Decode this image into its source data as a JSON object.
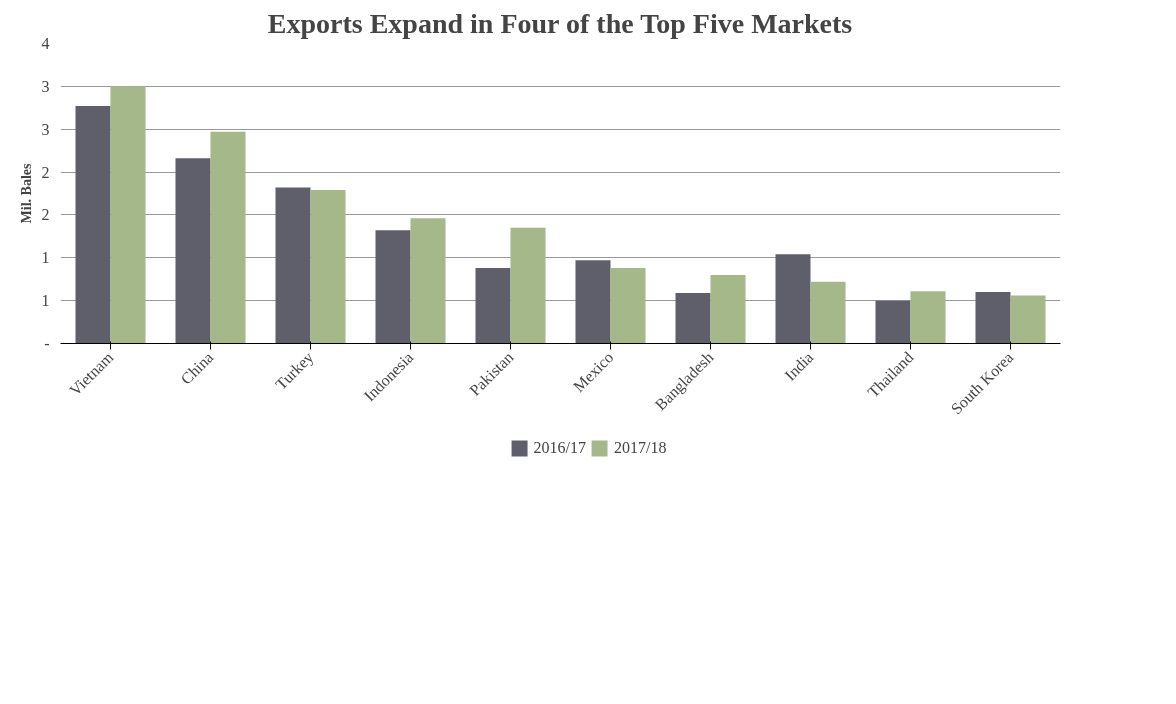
{
  "chart_data": {
    "type": "bar",
    "title": "Exports Expand in Four of the Top Five Markets",
    "ylabel": "Mil. Bales",
    "categories": [
      "Vietnam",
      "China",
      "Turkey",
      "Indonesia",
      "Pakistan",
      "Mexico",
      "Bangladesh",
      "India",
      "Thailand",
      "South Korea"
    ],
    "series": [
      {
        "name": "2016/17",
        "color": "#5f5f6b",
        "values": [
          2.77,
          2.16,
          1.82,
          1.32,
          0.88,
          0.97,
          0.59,
          1.04,
          0.5,
          0.6
        ]
      },
      {
        "name": "2017/18",
        "color": "#a4b88a",
        "values": [
          3.0,
          2.47,
          1.79,
          1.46,
          1.35,
          0.88,
          0.8,
          0.72,
          0.61,
          0.56
        ]
      }
    ],
    "ylim": [
      0,
      3.5
    ],
    "yticks": [
      {
        "value": 0,
        "label": "-"
      },
      {
        "value": 0.5,
        "label": "1"
      },
      {
        "value": 1,
        "label": "1"
      },
      {
        "value": 1.5,
        "label": "2"
      },
      {
        "value": 2,
        "label": "2"
      },
      {
        "value": 2.5,
        "label": "3"
      },
      {
        "value": 3,
        "label": "3"
      },
      {
        "value": 3.5,
        "label": "4"
      }
    ],
    "grid": "y",
    "legend": "bottom"
  }
}
